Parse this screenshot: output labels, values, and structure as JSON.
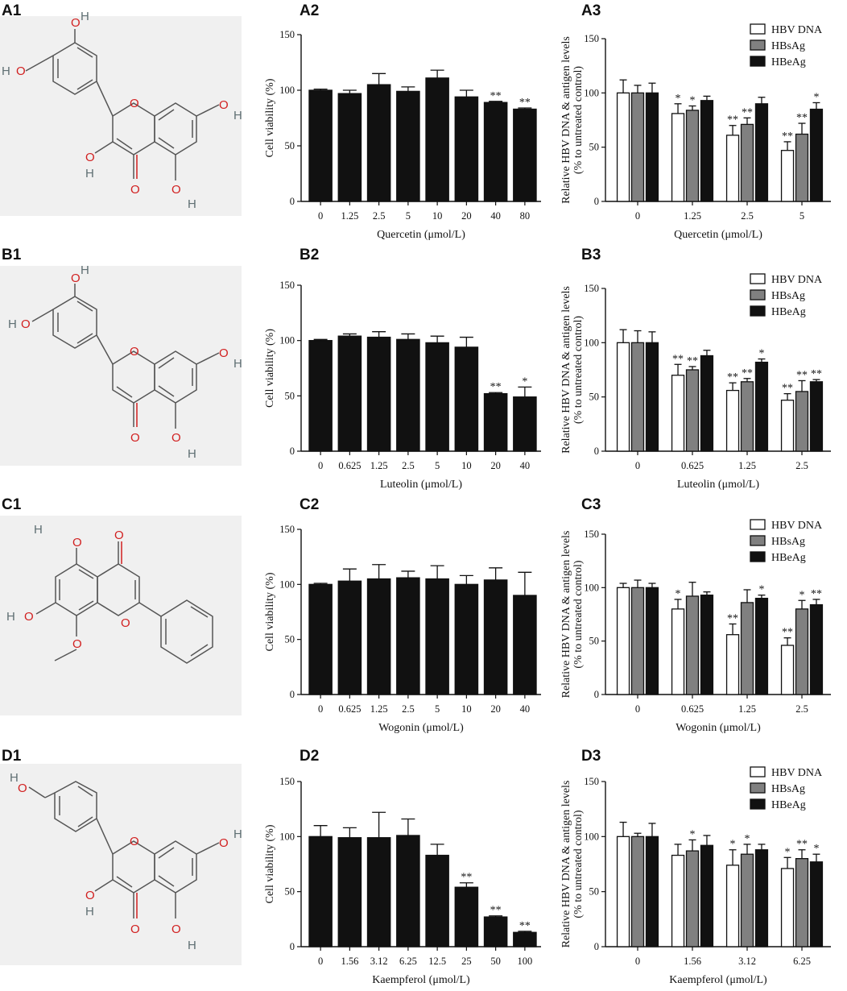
{
  "rows": [
    {
      "structure_label": "A1",
      "viability_label": "A2",
      "antigen_label": "A3"
    },
    {
      "structure_label": "B1",
      "viability_label": "B2",
      "antigen_label": "B3"
    },
    {
      "structure_label": "C1",
      "viability_label": "C2",
      "antigen_label": "C3"
    },
    {
      "structure_label": "D1",
      "viability_label": "D2",
      "antigen_label": "D3"
    }
  ],
  "atom_labels": {
    "oxygen": "O",
    "hydrogen": "H"
  },
  "colors": {
    "bar_black": "#111111",
    "bar_gray": "#808080",
    "bar_white": "#ffffff",
    "structure_bg": "#f0f0f0",
    "oxygen": "#d11f1f",
    "bond": "#555555"
  },
  "chart_data": [
    {
      "panel": "A2",
      "type": "bar",
      "categories": [
        "0",
        "1.25",
        "2.5",
        "5",
        "10",
        "20",
        "40",
        "80"
      ],
      "values": [
        100,
        97,
        105,
        99,
        111,
        94,
        89,
        83
      ],
      "errors": [
        1,
        3,
        10,
        4,
        7,
        6,
        1,
        1
      ],
      "significance": [
        "",
        "",
        "",
        "",
        "",
        "",
        "**",
        "**"
      ],
      "xlabel": "Quercetin (μmol/L)",
      "ylabel": "Cell viability (%)",
      "ylim": [
        0,
        150
      ],
      "yticks": [
        "0",
        "50",
        "100",
        "150"
      ]
    },
    {
      "panel": "A3",
      "type": "bar",
      "categories": [
        "0",
        "1.25",
        "2.5",
        "5"
      ],
      "series": [
        {
          "name": "HBV DNA",
          "color": "#ffffff",
          "values": [
            100,
            81,
            61,
            47
          ],
          "errors": [
            12,
            9,
            9,
            8
          ],
          "significance": [
            "",
            "*",
            "**",
            "**"
          ]
        },
        {
          "name": "HBsAg",
          "color": "#808080",
          "values": [
            100,
            84,
            71,
            62
          ],
          "errors": [
            7,
            4,
            6,
            10
          ],
          "significance": [
            "",
            "*",
            "**",
            "**"
          ]
        },
        {
          "name": "HBeAg",
          "color": "#111111",
          "values": [
            100,
            93,
            90,
            85
          ],
          "errors": [
            9,
            4,
            6,
            6
          ],
          "significance": [
            "",
            "",
            "",
            "*"
          ]
        }
      ],
      "xlabel": "Quercetin (μmol/L)",
      "ylabel": "Relative HBV DNA & antigen levels",
      "ylabel2": "(% to untreated control)",
      "ylim": [
        0,
        150
      ],
      "yticks": [
        "0",
        "50",
        "100",
        "150"
      ],
      "legend": "top-right"
    },
    {
      "panel": "B2",
      "type": "bar",
      "categories": [
        "0",
        "0.625",
        "1.25",
        "2.5",
        "5",
        "10",
        "20",
        "40"
      ],
      "values": [
        100,
        104,
        103,
        101,
        98,
        94,
        52,
        49
      ],
      "errors": [
        1,
        2,
        5,
        5,
        6,
        9,
        1,
        9
      ],
      "significance": [
        "",
        "",
        "",
        "",
        "",
        "",
        "**",
        "*"
      ],
      "xlabel": "Luteolin (μmol/L)",
      "ylabel": "Cell viability (%)",
      "ylim": [
        0,
        150
      ],
      "yticks": [
        "0",
        "50",
        "100",
        "150"
      ]
    },
    {
      "panel": "B3",
      "type": "bar",
      "categories": [
        "0",
        "0.625",
        "1.25",
        "2.5"
      ],
      "series": [
        {
          "name": "HBV DNA",
          "color": "#ffffff",
          "values": [
            100,
            70,
            56,
            47
          ],
          "errors": [
            12,
            10,
            7,
            6
          ],
          "significance": [
            "",
            "**",
            "**",
            "**"
          ]
        },
        {
          "name": "HBsAg",
          "color": "#808080",
          "values": [
            100,
            75,
            64,
            55
          ],
          "errors": [
            11,
            3,
            3,
            10
          ],
          "significance": [
            "",
            "**",
            "**",
            "**"
          ]
        },
        {
          "name": "HBeAg",
          "color": "#111111",
          "values": [
            100,
            88,
            82,
            64
          ],
          "errors": [
            10,
            5,
            3,
            2
          ],
          "significance": [
            "",
            "",
            "*",
            "**"
          ]
        }
      ],
      "xlabel": "Luteolin (μmol/L)",
      "ylabel": "Relative HBV DNA & antigen levels",
      "ylabel2": "(% to untreated control)",
      "ylim": [
        0,
        150
      ],
      "yticks": [
        "0",
        "50",
        "100",
        "150"
      ],
      "legend": "top-right"
    },
    {
      "panel": "C2",
      "type": "bar",
      "categories": [
        "0",
        "0.625",
        "1.25",
        "2.5",
        "5",
        "10",
        "20",
        "40"
      ],
      "values": [
        100,
        103,
        105,
        106,
        105,
        100,
        104,
        90
      ],
      "errors": [
        1,
        11,
        13,
        6,
        12,
        8,
        11,
        21
      ],
      "significance": [
        "",
        "",
        "",
        "",
        "",
        "",
        "",
        ""
      ],
      "xlabel": "Wogonin (μmol/L)",
      "ylabel": "Cell viability (%)",
      "ylim": [
        0,
        150
      ],
      "yticks": [
        "0",
        "50",
        "100",
        "150"
      ]
    },
    {
      "panel": "C3",
      "type": "bar",
      "categories": [
        "0",
        "0.625",
        "1.25",
        "2.5"
      ],
      "series": [
        {
          "name": "HBV DNA",
          "color": "#ffffff",
          "values": [
            100,
            80,
            56,
            46
          ],
          "errors": [
            4,
            9,
            10,
            7
          ],
          "significance": [
            "",
            "*",
            "**",
            "**"
          ]
        },
        {
          "name": "HBsAg",
          "color": "#808080",
          "values": [
            100,
            92,
            86,
            80
          ],
          "errors": [
            7,
            13,
            12,
            8
          ],
          "significance": [
            "",
            "",
            "",
            "*"
          ]
        },
        {
          "name": "HBeAg",
          "color": "#111111",
          "values": [
            100,
            93,
            90,
            84
          ],
          "errors": [
            4,
            3,
            3,
            5
          ],
          "significance": [
            "",
            "",
            "*",
            "**"
          ]
        }
      ],
      "xlabel": "Wogonin (μmol/L)",
      "ylabel": "Relative HBV DNA & antigen levels",
      "ylabel2": "(% to untreated control)",
      "ylim": [
        0,
        150
      ],
      "yticks": [
        "0",
        "50",
        "100",
        "150"
      ],
      "legend": "top-right"
    },
    {
      "panel": "D2",
      "type": "bar",
      "categories": [
        "0",
        "1.56",
        "3.12",
        "6.25",
        "12.5",
        "25",
        "50",
        "100"
      ],
      "values": [
        100,
        99,
        99,
        101,
        83,
        54,
        27,
        13
      ],
      "errors": [
        10,
        9,
        23,
        15,
        10,
        4,
        1,
        1
      ],
      "significance": [
        "",
        "",
        "",
        "",
        "",
        "**",
        "**",
        "**"
      ],
      "xlabel": "Kaempferol (μmol/L)",
      "ylabel": "Cell viability (%)",
      "ylim": [
        0,
        150
      ],
      "yticks": [
        "0",
        "50",
        "100",
        "150"
      ]
    },
    {
      "panel": "D3",
      "type": "bar",
      "categories": [
        "0",
        "1.56",
        "3.12",
        "6.25"
      ],
      "series": [
        {
          "name": "HBV DNA",
          "color": "#ffffff",
          "values": [
            100,
            83,
            74,
            71
          ],
          "errors": [
            13,
            10,
            14,
            10
          ],
          "significance": [
            "",
            "",
            "*",
            "*"
          ]
        },
        {
          "name": "HBsAg",
          "color": "#808080",
          "values": [
            100,
            87,
            84,
            80
          ],
          "errors": [
            3,
            10,
            9,
            8
          ],
          "significance": [
            "",
            "*",
            "*",
            "**"
          ]
        },
        {
          "name": "HBeAg",
          "color": "#111111",
          "values": [
            100,
            92,
            88,
            77
          ],
          "errors": [
            12,
            9,
            5,
            7
          ],
          "significance": [
            "",
            "",
            "",
            "*"
          ]
        }
      ],
      "xlabel": "Kaempferol (μmol/L)",
      "ylabel": "Relative HBV DNA & antigen levels",
      "ylabel2": "(% to untreated control)",
      "ylim": [
        0,
        150
      ],
      "yticks": [
        "0",
        "50",
        "100",
        "150"
      ],
      "legend": "top-right"
    }
  ]
}
